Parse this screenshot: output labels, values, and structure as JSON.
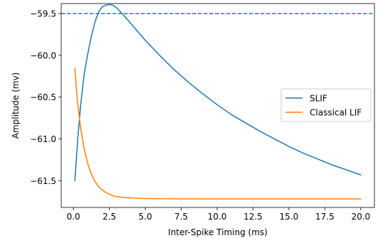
{
  "chart_data": {
    "type": "line",
    "title": "",
    "xlabel": "Inter-Spike Timing (ms)",
    "ylabel": "Amplitude (mv)",
    "xlim": [
      -0.85,
      20.95
    ],
    "ylim": [
      -61.82,
      -59.38
    ],
    "xticks": [
      0.0,
      2.5,
      5.0,
      7.5,
      10.0,
      12.5,
      15.0,
      17.5,
      20.0
    ],
    "xtick_labels": [
      "0.0",
      "2.5",
      "5.0",
      "7.5",
      "10.0",
      "12.5",
      "15.0",
      "17.5",
      "20.0"
    ],
    "yticks": [
      -59.5,
      -60.0,
      -60.5,
      -61.0,
      -61.5
    ],
    "ytick_labels": [
      "−59.5",
      "−60.0",
      "−60.5",
      "−61.0",
      "−61.5"
    ],
    "grid": false,
    "legend": {
      "position": "center-right"
    },
    "reference_line": {
      "y": -59.5,
      "style": "dashed",
      "color": "#1f77b4"
    },
    "series": [
      {
        "name": "SLIF",
        "color": "#1f77b4",
        "x": [
          0.1,
          0.3,
          0.5,
          0.75,
          1.0,
          1.25,
          1.5,
          1.75,
          2.0,
          2.25,
          2.5,
          2.75,
          3.0,
          3.5,
          4.0,
          4.5,
          5.0,
          5.5,
          6.0,
          7.0,
          8.0,
          9.0,
          10.0,
          11.0,
          12.0,
          13.0,
          14.0,
          15.0,
          16.0,
          17.0,
          18.0,
          19.0,
          20.0
        ],
        "y": [
          -61.5,
          -61.0,
          -60.6,
          -60.22,
          -59.98,
          -59.77,
          -59.6,
          -59.48,
          -59.42,
          -59.4,
          -59.39,
          -59.4,
          -59.43,
          -59.52,
          -59.62,
          -59.72,
          -59.82,
          -59.91,
          -60.0,
          -60.17,
          -60.32,
          -60.46,
          -60.59,
          -60.71,
          -60.81,
          -60.91,
          -61.0,
          -61.09,
          -61.17,
          -61.24,
          -61.31,
          -61.37,
          -61.43
        ]
      },
      {
        "name": "Classical LIF",
        "color": "#ff7f0e",
        "x": [
          0.1,
          0.25,
          0.5,
          0.75,
          1.0,
          1.25,
          1.5,
          1.75,
          2.0,
          2.25,
          2.5,
          2.75,
          3.0,
          3.5,
          4.0,
          4.5,
          5.0,
          6.0,
          7.0,
          8.0,
          10.0,
          12.0,
          14.0,
          16.0,
          18.0,
          20.0
        ],
        "y": [
          -60.15,
          -60.5,
          -60.87,
          -61.12,
          -61.3,
          -61.42,
          -61.51,
          -61.57,
          -61.61,
          -61.64,
          -61.66,
          -61.68,
          -61.69,
          -61.7,
          -61.705,
          -61.71,
          -61.713,
          -61.715,
          -61.716,
          -61.717,
          -61.718,
          -61.718,
          -61.718,
          -61.718,
          -61.718,
          -61.718
        ]
      }
    ]
  }
}
